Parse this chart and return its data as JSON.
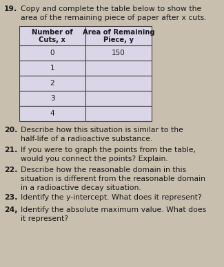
{
  "bg_color": "#c8bfaf",
  "table_bg": "#dbd5e8",
  "text_color": "#1a1a1a",
  "q19_header": "19.",
  "q19_text1": "Copy and complete the table below to show the",
  "q19_text2": "area of the remaining piece of paper after x cuts.",
  "col1_header1": "Number of",
  "col1_header2": "Cuts, x",
  "col2_header1": "Area of Remaining",
  "col2_header2": "Piece, y",
  "rows": [
    [
      "0",
      "150"
    ],
    [
      "1",
      ""
    ],
    [
      "2",
      ""
    ],
    [
      "3",
      ""
    ],
    [
      "4",
      ""
    ]
  ],
  "questions": [
    {
      "num": "20.",
      "text": "Describe how this situation is similar to the\nhalf-life of a radioactive substance."
    },
    {
      "num": "21.",
      "text": "If you were to graph the points from the table,\nwould you connect the points? Explain."
    },
    {
      "num": "22.",
      "text": "Describe how the reasonable domain in this\nsituation is different from the reasonable domain\nin a radioactive decay situation."
    },
    {
      "num": "23.",
      "text": "Identify the y-intercept. What does it represent?"
    },
    {
      "num": "24,",
      "text": "Identify the absolute maximum value. What does\nit represent?"
    }
  ]
}
